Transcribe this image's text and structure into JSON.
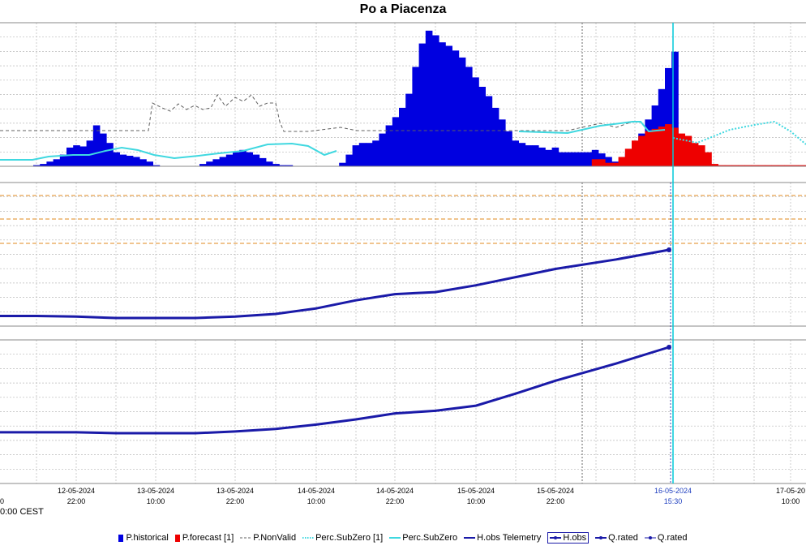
{
  "title": "Po a Piacenza",
  "timezone_label": "0:00 CEST",
  "colors": {
    "historical": "#0000e0",
    "forecast": "#ee0000",
    "nonvalid": "#606060",
    "subzero": "#40d8e0",
    "hobs": "#1a1aa8",
    "threshold": "#e08a1c",
    "grid": "#b8b8b8",
    "now_line": "#00c8d8"
  },
  "legend": [
    {
      "label": "P.historical",
      "swatch": "box",
      "color": "#0000e0"
    },
    {
      "label": "P.forecast [1]",
      "swatch": "box",
      "color": "#ee0000"
    },
    {
      "label": "P.NonValid",
      "swatch": "dash",
      "color": "#606060"
    },
    {
      "label": "Perc.SubZero [1]",
      "swatch": "dot",
      "color": "#40d8e0"
    },
    {
      "label": "Perc.SubZero",
      "swatch": "line",
      "color": "#40d8e0"
    },
    {
      "label": "H.obs Telemetry",
      "swatch": "line",
      "color": "#1a1aa8"
    },
    {
      "label": "H.obs",
      "swatch": "marker",
      "color": "#1a1aa8",
      "boxed": true
    },
    {
      "label": "Q.rated",
      "swatch": "marker",
      "color": "#1a1aa8"
    },
    {
      "label": "Q.rated",
      "swatch": "dotmark",
      "color": "#1a1aa8"
    }
  ],
  "chart_data": {
    "type": "bar",
    "title": "Po a Piacenza",
    "x_ticks": [
      {
        "date": "",
        "time": "0"
      },
      {
        "date": "12-05-2024",
        "time": "22:00"
      },
      {
        "date": "13-05-2024",
        "time": "10:00"
      },
      {
        "date": "13-05-2024",
        "time": "22:00"
      },
      {
        "date": "14-05-2024",
        "time": "10:00"
      },
      {
        "date": "14-05-2024",
        "time": "22:00"
      },
      {
        "date": "15-05-2024",
        "time": "10:00"
      },
      {
        "date": "15-05-2024",
        "time": "22:00"
      },
      {
        "date": "16-05-2024",
        "time": "15:30",
        "highlight": true
      },
      {
        "date": "17-05-20",
        "time": "10:00"
      }
    ],
    "now_label": "16-05-2024 15:30",
    "precipitation": {
      "historical": [
        0,
        0,
        0,
        0,
        0,
        1,
        2,
        4,
        6,
        10,
        16,
        18,
        17,
        22,
        35,
        28,
        20,
        12,
        10,
        9,
        8,
        6,
        4,
        1,
        0,
        0,
        0,
        0,
        0,
        0,
        2,
        4,
        6,
        8,
        10,
        12,
        14,
        12,
        10,
        7,
        4,
        2,
        1,
        1,
        0,
        0,
        0,
        0,
        0,
        0,
        0,
        3,
        10,
        18,
        20,
        20,
        22,
        28,
        35,
        42,
        50,
        62,
        85,
        105,
        116,
        112,
        106,
        103,
        99,
        93,
        85,
        76,
        68,
        60,
        50,
        40,
        30,
        22,
        20,
        18,
        18,
        16,
        14,
        16,
        12,
        12,
        12,
        12,
        12,
        14,
        11,
        8,
        4,
        1,
        11,
        18,
        28,
        40,
        52,
        66,
        84,
        98
      ],
      "forecast": [
        0,
        0,
        0,
        0,
        0,
        0,
        0,
        0,
        0,
        0,
        0,
        0,
        0,
        0,
        0,
        0,
        0,
        0,
        0,
        0,
        0,
        0,
        0,
        0,
        0,
        0,
        0,
        0,
        0,
        0,
        0,
        0,
        0,
        0,
        0,
        0,
        0,
        0,
        0,
        0,
        0,
        0,
        0,
        0,
        0,
        0,
        0,
        0,
        0,
        0,
        0,
        0,
        0,
        0,
        0,
        0,
        0,
        0,
        0,
        0,
        0,
        0,
        0,
        0,
        0,
        0,
        0,
        0,
        0,
        0,
        0,
        0,
        0,
        0,
        0,
        0,
        0,
        0,
        0,
        0,
        0,
        0,
        0,
        0,
        0,
        0,
        0,
        0,
        0,
        6,
        6,
        3,
        3,
        8,
        15,
        22,
        26,
        30,
        32,
        34,
        36,
        33,
        28,
        26,
        20,
        18,
        12,
        2,
        1,
        1,
        1,
        1,
        1,
        1,
        1,
        1,
        1,
        1,
        1,
        1,
        1,
        1,
        1,
        1,
        1,
        1,
        1,
        1,
        2
      ]
    },
    "h_obs_series": [
      {
        "name": "H.obs",
        "values": [
          0.03,
          0.03,
          0.02,
          0.0,
          0.0,
          0.0,
          0.02,
          0.06,
          0.14,
          0.26,
          0.35,
          0.38,
          0.48,
          0.6,
          0.72,
          0.86,
          1.0
        ]
      },
      {
        "name": "Q.rated",
        "values": [
          0.01,
          0.01,
          0.01,
          0.0,
          0.0,
          0.0,
          0.02,
          0.05,
          0.1,
          0.16,
          0.23,
          0.26,
          0.32,
          0.46,
          0.61,
          0.81,
          1.0
        ]
      }
    ]
  }
}
